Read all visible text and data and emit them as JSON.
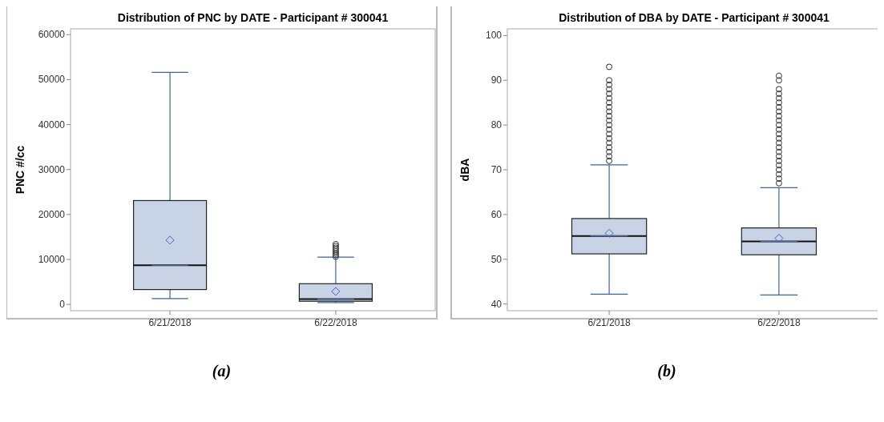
{
  "chart_data": [
    {
      "type": "box",
      "title": "Distribution of PNC by DATE - Participant # 300041",
      "ylabel": "PNC #/cc",
      "categories": [
        "6/21/2018",
        "6/22/2018"
      ],
      "boxes": [
        {
          "low": 1300,
          "q1": 3300,
          "median": 8700,
          "q3": 23100,
          "high": 51600,
          "mean": 14300
        },
        {
          "low": 400,
          "q1": 700,
          "median": 1200,
          "q3": 4600,
          "high": 10500,
          "mean": 2900,
          "outliers": [
            10600,
            11000,
            11400,
            11800,
            12200,
            12600,
            13000,
            13400
          ]
        }
      ],
      "ylim": [
        -1400,
        61300
      ],
      "yticks": [
        0,
        10000,
        20000,
        30000,
        40000,
        50000,
        60000
      ],
      "grid": false,
      "annotations": [
        "(a)"
      ]
    },
    {
      "type": "box",
      "title": "Distribution of DBA by DATE - Participant # 300041",
      "ylabel": "dBA",
      "categories": [
        "6/21/2018",
        "6/22/2018"
      ],
      "boxes": [
        {
          "low": 42.2,
          "q1": 51.2,
          "median": 55.2,
          "q3": 59.1,
          "high": 71.1,
          "mean": 55.8,
          "outliers": [
            72,
            73,
            74,
            75,
            76,
            77,
            78,
            79,
            80,
            81,
            82,
            83,
            84,
            85,
            86,
            87,
            88,
            89,
            90,
            93
          ]
        },
        {
          "low": 42,
          "q1": 51,
          "median": 54,
          "q3": 57,
          "high": 66,
          "mean": 54.7,
          "outliers": [
            67,
            68,
            69,
            70,
            71,
            72,
            73,
            74,
            75,
            76,
            77,
            78,
            79,
            80,
            81,
            82,
            83,
            84,
            85,
            86,
            87,
            88,
            90,
            91
          ]
        }
      ],
      "ylim": [
        38.5,
        101.5
      ],
      "yticks": [
        40,
        50,
        60,
        70,
        80,
        90,
        100
      ],
      "grid": false,
      "annotations": [
        "(b)"
      ]
    }
  ]
}
